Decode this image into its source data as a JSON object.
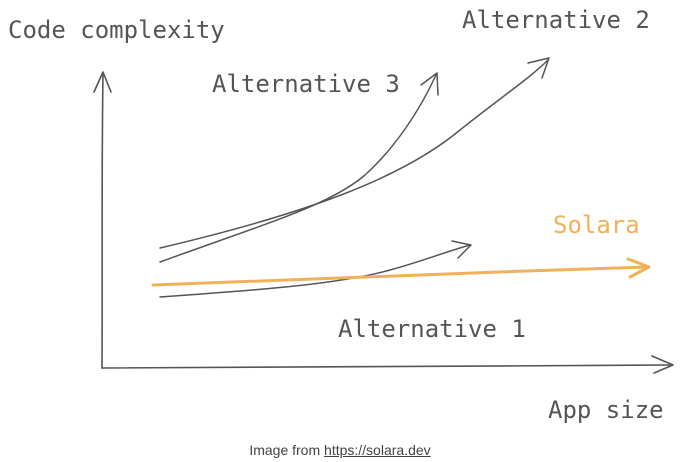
{
  "diagram": {
    "y_axis_label": "Code complexity",
    "x_axis_label": "App size",
    "curves": {
      "alternative_1": "Alternative 1",
      "alternative_2": "Alternative 2",
      "alternative_3": "Alternative 3",
      "solara": "Solara"
    },
    "colors": {
      "ink": "#555555",
      "solara": "#f0b15a"
    }
  },
  "caption": {
    "prefix": "Image from",
    "link": "https://solara.dev"
  }
}
